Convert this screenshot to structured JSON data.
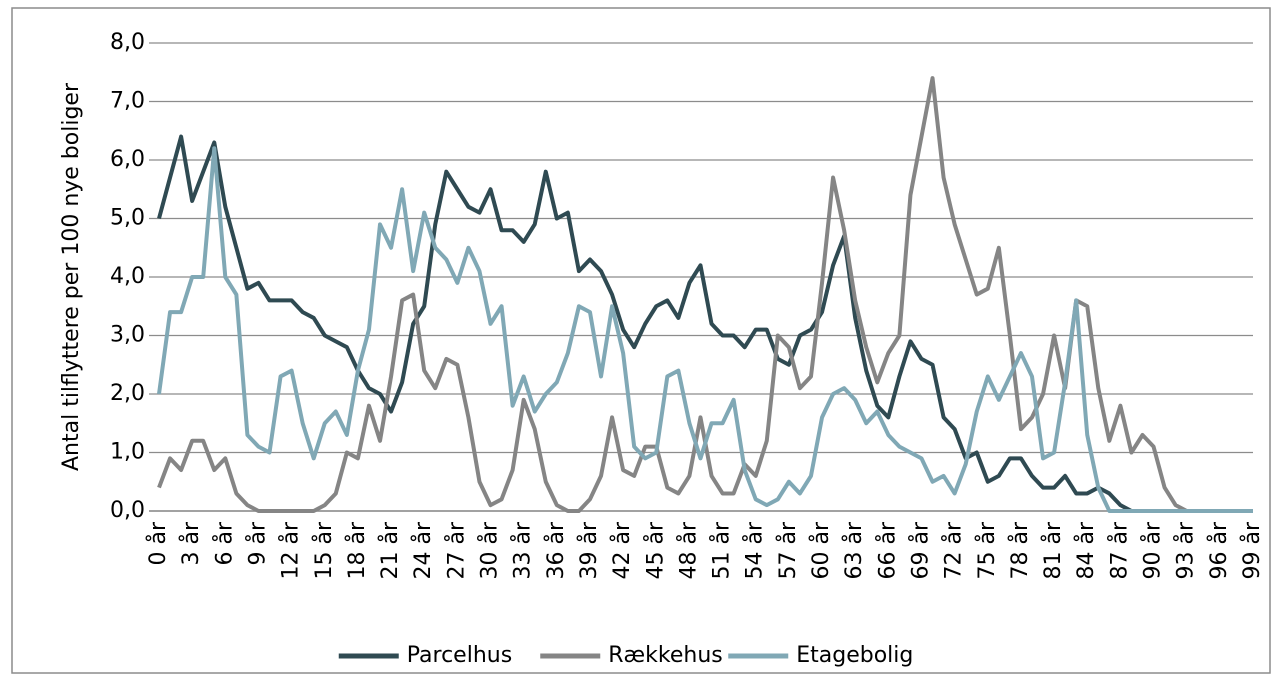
{
  "chart_data": {
    "type": "line",
    "y_label": "Antal tilflyttere per 100 nye boliger",
    "categories": [
      "0 år",
      null,
      null,
      "3 år",
      null,
      null,
      "6 år",
      null,
      null,
      "9 år",
      null,
      null,
      "12 år",
      null,
      null,
      "15 år",
      null,
      null,
      "18 år",
      null,
      null,
      "21 år",
      null,
      null,
      "24 år",
      null,
      null,
      "27 år",
      null,
      null,
      "30 år",
      null,
      null,
      "33 år",
      null,
      null,
      "36 år",
      null,
      null,
      "39 år",
      null,
      null,
      "42 år",
      null,
      null,
      "45 år",
      null,
      null,
      "48 år",
      null,
      null,
      "51 år",
      null,
      null,
      "54 år",
      null,
      null,
      "57 år",
      null,
      null,
      "60 år",
      null,
      null,
      "63 år",
      null,
      null,
      "66 år",
      null,
      null,
      "69 år",
      null,
      null,
      "72 år",
      null,
      null,
      "75 år",
      null,
      null,
      "78 år",
      null,
      null,
      "81 år",
      null,
      null,
      "84 år",
      null,
      null,
      "87 år",
      null,
      null,
      "90 år",
      null,
      null,
      "93 år",
      null,
      null,
      "96 år",
      null,
      null,
      "99 år"
    ],
    "series": [
      {
        "name": "Parcelhus",
        "color": "#2f4a52",
        "values": [
          5.0,
          5.7,
          6.4,
          5.3,
          5.8,
          6.3,
          5.2,
          4.5,
          3.8,
          3.9,
          3.6,
          3.6,
          3.6,
          3.4,
          3.3,
          3.0,
          2.9,
          2.8,
          2.4,
          2.1,
          2.0,
          1.7,
          2.2,
          3.2,
          3.5,
          4.9,
          5.8,
          5.5,
          5.2,
          5.1,
          5.5,
          4.8,
          4.8,
          4.6,
          4.9,
          5.8,
          5.0,
          5.1,
          4.1,
          4.3,
          4.1,
          3.7,
          3.1,
          2.8,
          3.2,
          3.5,
          3.6,
          3.3,
          3.9,
          4.2,
          3.2,
          3.0,
          3.0,
          2.8,
          3.1,
          3.1,
          2.6,
          2.5,
          3.0,
          3.1,
          3.4,
          4.2,
          4.7,
          3.3,
          2.4,
          1.8,
          1.6,
          2.3,
          2.9,
          2.6,
          2.5,
          1.6,
          1.4,
          0.9,
          1.0,
          0.5,
          0.6,
          0.9,
          0.9,
          0.6,
          0.4,
          0.4,
          0.6,
          0.3,
          0.3,
          0.4,
          0.3,
          0.1,
          0,
          0,
          0,
          0,
          0,
          0,
          0,
          0,
          0,
          0,
          0,
          0
        ]
      },
      {
        "name": "Rækkehus",
        "color": "#858585",
        "values": [
          0.4,
          0.9,
          0.7,
          1.2,
          1.2,
          0.7,
          0.9,
          0.3,
          0.1,
          0,
          0,
          0,
          0,
          0,
          0,
          0.1,
          0.3,
          1.0,
          0.9,
          1.8,
          1.2,
          2.3,
          3.6,
          3.7,
          2.4,
          2.1,
          2.6,
          2.5,
          1.6,
          0.5,
          0.1,
          0.2,
          0.7,
          1.9,
          1.4,
          0.5,
          0.1,
          0,
          0,
          0.2,
          0.6,
          1.6,
          0.7,
          0.6,
          1.1,
          1.1,
          0.4,
          0.3,
          0.6,
          1.6,
          0.6,
          0.3,
          0.3,
          0.8,
          0.6,
          1.2,
          3.0,
          2.8,
          2.1,
          2.3,
          3.9,
          5.7,
          4.8,
          3.6,
          2.8,
          2.2,
          2.7,
          3.0,
          5.4,
          6.4,
          7.4,
          5.7,
          4.9,
          4.3,
          3.7,
          3.8,
          4.5,
          3.0,
          1.4,
          1.6,
          2.0,
          3.0,
          2.1,
          3.6,
          3.5,
          2.1,
          1.2,
          1.8,
          1.0,
          1.3,
          1.1,
          0.4,
          0.1,
          0,
          0,
          0,
          0,
          0,
          0,
          0
        ]
      },
      {
        "name": "Etagebolig",
        "color": "#80a8b5",
        "values": [
          2.0,
          3.4,
          3.4,
          4.0,
          4.0,
          6.2,
          4.0,
          3.7,
          1.3,
          1.1,
          1.0,
          2.3,
          2.4,
          1.5,
          0.9,
          1.5,
          1.7,
          1.3,
          2.4,
          3.1,
          4.9,
          4.5,
          5.5,
          4.1,
          5.1,
          4.5,
          4.3,
          3.9,
          4.5,
          4.1,
          3.2,
          3.5,
          1.8,
          2.3,
          1.7,
          2.0,
          2.2,
          2.7,
          3.5,
          3.4,
          2.3,
          3.5,
          2.7,
          1.1,
          0.9,
          1.0,
          2.3,
          2.4,
          1.5,
          0.9,
          1.5,
          1.5,
          1.9,
          0.7,
          0.2,
          0.1,
          0.2,
          0.5,
          0.3,
          0.6,
          1.6,
          2.0,
          2.1,
          1.9,
          1.5,
          1.7,
          1.3,
          1.1,
          1.0,
          0.9,
          0.5,
          0.6,
          0.3,
          0.8,
          1.7,
          2.3,
          1.9,
          2.3,
          2.7,
          2.3,
          0.9,
          1.0,
          2.2,
          3.6,
          1.3,
          0.4,
          0,
          0,
          0,
          0,
          0,
          0,
          0,
          0,
          0,
          0,
          0,
          0,
          0,
          0
        ]
      }
    ],
    "ylim": [
      0,
      8
    ],
    "yticks": [
      {
        "value": 0,
        "label": "0,0"
      },
      {
        "value": 1,
        "label": "1,0"
      },
      {
        "value": 2,
        "label": "2,0"
      },
      {
        "value": 3,
        "label": "3,0"
      },
      {
        "value": 4,
        "label": "4,0"
      },
      {
        "value": 5,
        "label": "5,0"
      },
      {
        "value": 6,
        "label": "6,0"
      },
      {
        "value": 7,
        "label": "7,0"
      },
      {
        "value": 8,
        "label": "8,0"
      }
    ],
    "grid": true,
    "legend": "bottom"
  }
}
